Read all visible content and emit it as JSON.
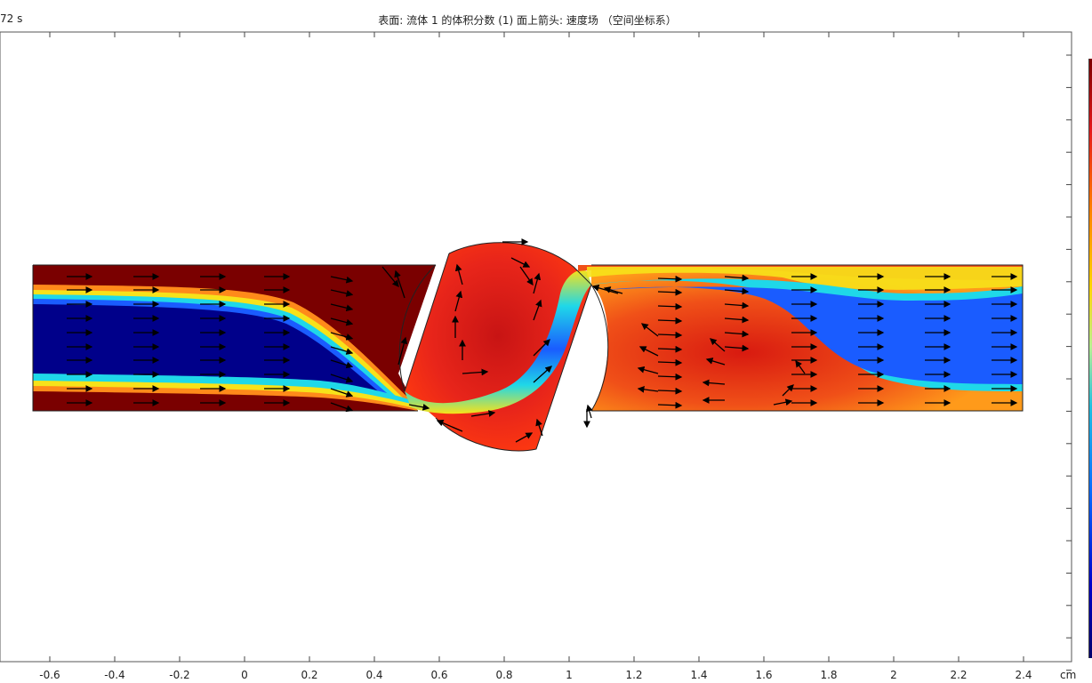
{
  "header": {
    "time_label": "72 s",
    "title": "表面: 流体 1 的体积分数 (1)  面上箭头: 速度场 （空间坐标系）"
  },
  "axis": {
    "unit": "cm",
    "x_ticks": [
      "-0.6",
      "-0.4",
      "-0.2",
      "0",
      "0.2",
      "0.4",
      "0.6",
      "0.8",
      "1",
      "1.2",
      "1.4",
      "1.6",
      "1.8",
      "2",
      "2.2",
      "2.4"
    ]
  },
  "colors": {
    "dark_red": "#7a0000",
    "red": "#e8251a",
    "orange": "#ff8a1a",
    "yellow": "#f7e21a",
    "cyan": "#1fd8e8",
    "blue": "#1a5cff",
    "navy": "#00008a"
  },
  "plot": {
    "surface_variable": "fluid 1 volume fraction",
    "arrow_variable": "velocity field"
  }
}
